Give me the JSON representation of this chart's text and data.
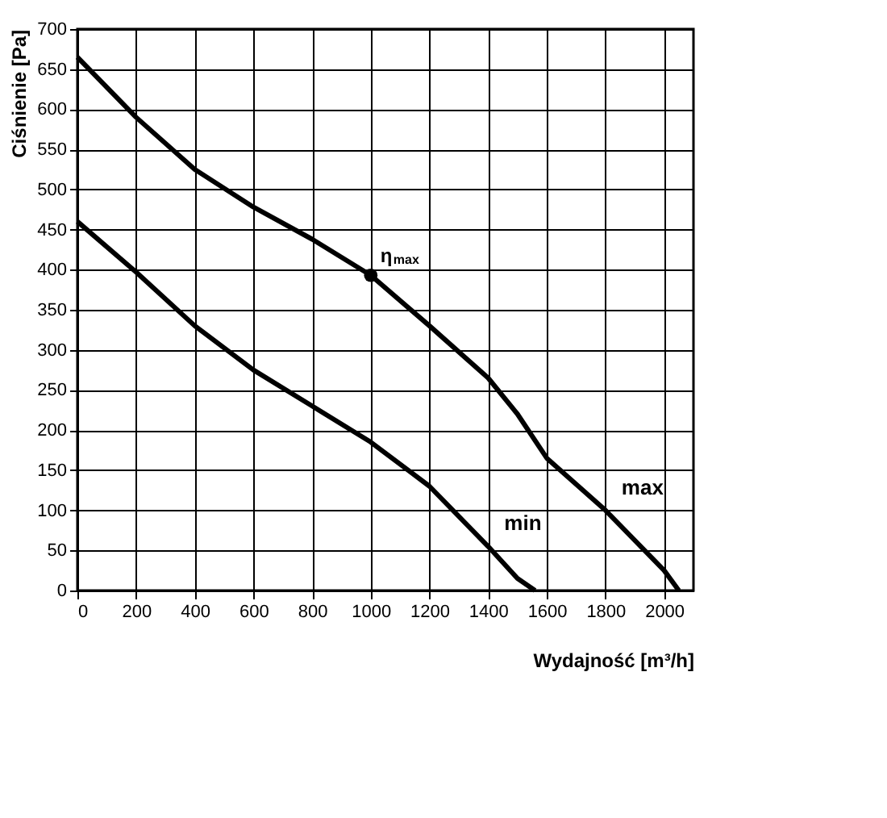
{
  "chart_data": {
    "type": "line",
    "xlabel": "Wydajność [m³/h]",
    "ylabel": "Ciśnienie [Pa]",
    "xlim": [
      0,
      2100
    ],
    "xticks": [
      0,
      200,
      400,
      600,
      800,
      1000,
      1200,
      1400,
      1600,
      1800,
      2000
    ],
    "ylim": [
      0,
      700
    ],
    "yticks": [
      0,
      50,
      100,
      150,
      200,
      250,
      300,
      350,
      400,
      450,
      500,
      550,
      600,
      650,
      700
    ],
    "grid": true,
    "line_style": "solid",
    "series": [
      {
        "name": "max",
        "color": "#000000",
        "x": [
          0,
          200,
          400,
          600,
          800,
          1000,
          1200,
          1400,
          1500,
          1600,
          1800,
          2000,
          2050
        ],
        "values": [
          665,
          590,
          525,
          478,
          438,
          393,
          330,
          265,
          220,
          165,
          100,
          25,
          0
        ]
      },
      {
        "name": "min",
        "color": "#000000",
        "x": [
          0,
          200,
          400,
          600,
          800,
          1000,
          1200,
          1400,
          1500,
          1560
        ],
        "values": [
          460,
          397,
          330,
          275,
          230,
          185,
          130,
          55,
          15,
          0
        ]
      },
      {
        "type": "scatter",
        "marker": "circle",
        "color": "#000000",
        "x": [
          1000
        ],
        "values": [
          393
        ]
      }
    ],
    "annotations": [
      {
        "text": "η$_{max}$",
        "x": 1000,
        "y": 393
      }
    ]
  }
}
